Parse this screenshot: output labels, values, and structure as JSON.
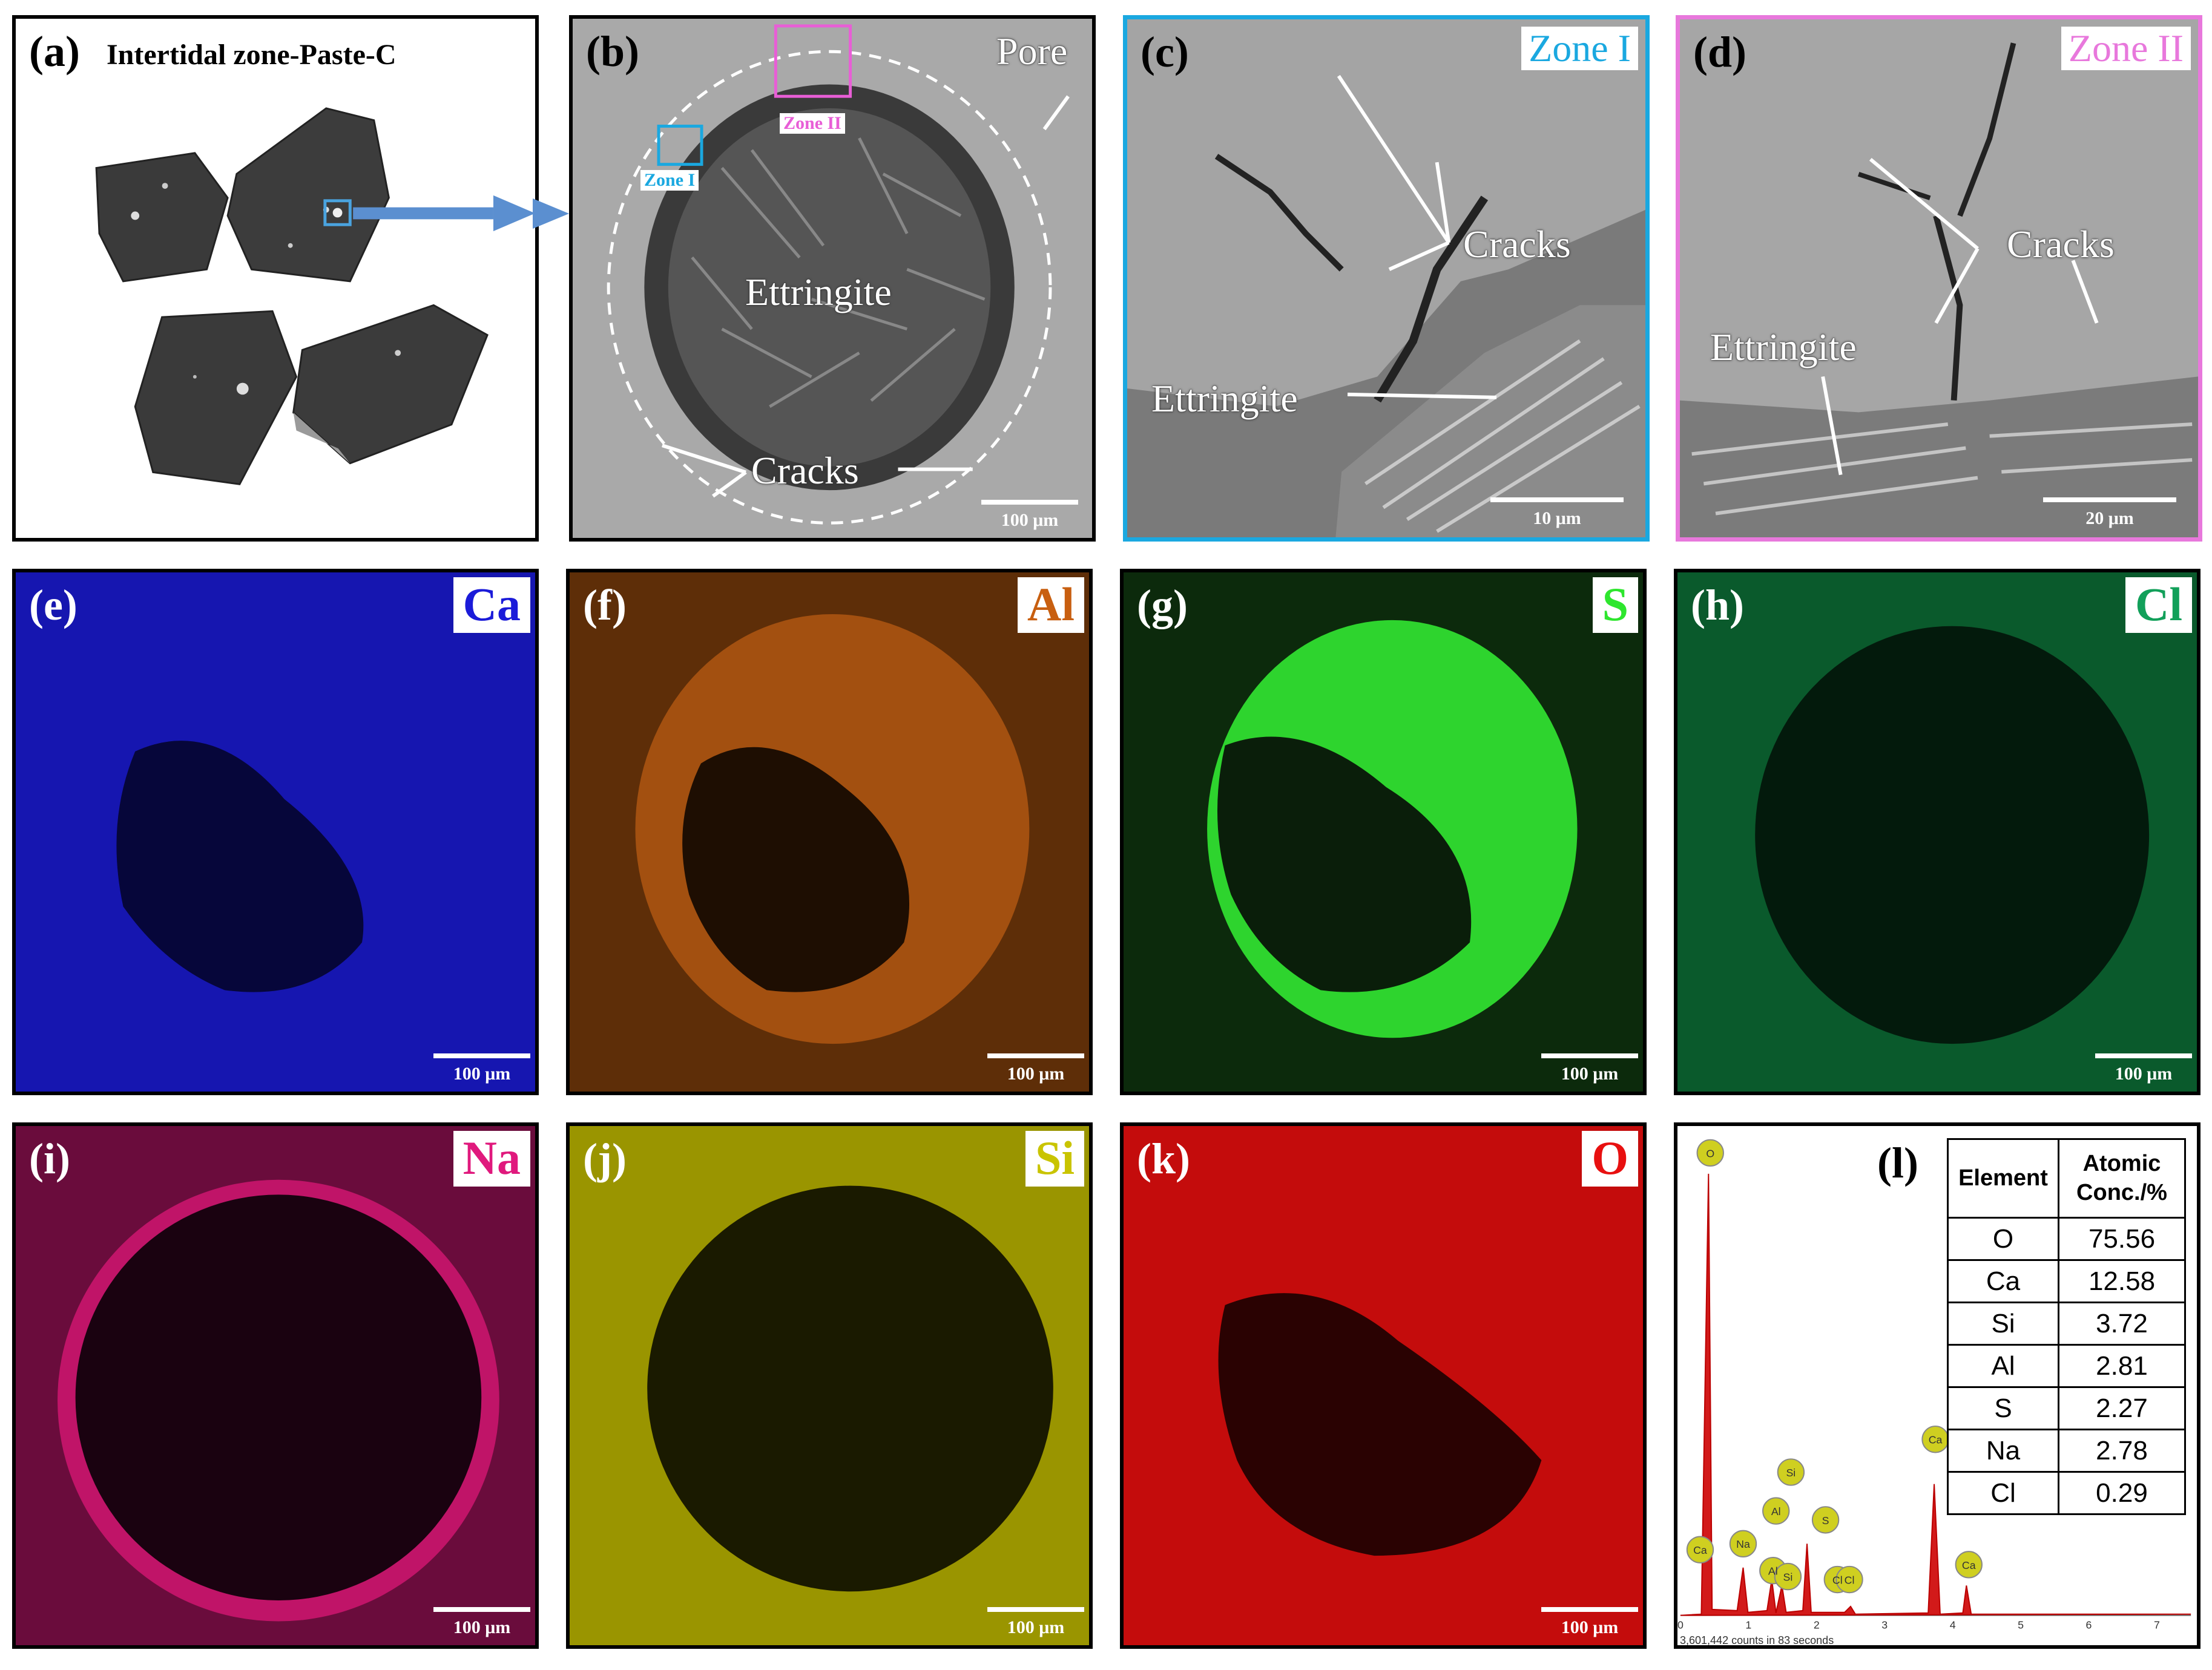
{
  "panels": {
    "a": {
      "label": "(a)",
      "title": "Intertidal zone-Paste-C"
    },
    "b": {
      "label": "(b)",
      "pore": "Pore",
      "ettringite": "Ettringite",
      "cracks": "Cracks",
      "zone1": "Zone I",
      "zone2": "Zone II",
      "scale": "100 μm"
    },
    "c": {
      "label": "(c)",
      "zone": "Zone I",
      "cracks": "Cracks",
      "ettringite": "Ettringite",
      "scale": "10 μm"
    },
    "d": {
      "label": "(d)",
      "zone": "Zone II",
      "cracks": "Cracks",
      "ettringite": "Ettringite",
      "scale": "20 μm"
    },
    "e": {
      "label": "(e)",
      "element": "Ca",
      "scale": "100 μm",
      "color": "#1b1bd9"
    },
    "f": {
      "label": "(f)",
      "element": "Al",
      "scale": "100 μm",
      "color": "#c85f10"
    },
    "g": {
      "label": "(g)",
      "element": "S",
      "scale": "100 μm",
      "color": "#2ee62e"
    },
    "h": {
      "label": "(h)",
      "element": "Cl",
      "scale": "100 μm",
      "color": "#12a05a"
    },
    "i": {
      "label": "(i)",
      "element": "Na",
      "scale": "100 μm",
      "color": "#e0197d"
    },
    "j": {
      "label": "(j)",
      "element": "Si",
      "scale": "100 μm",
      "color": "#c9c400"
    },
    "k": {
      "label": "(k)",
      "element": "O",
      "scale": "100 μm",
      "color": "#e81010"
    },
    "l": {
      "label": "(l)",
      "table": {
        "header_element": "Element",
        "header_conc": "Atomic Conc./%",
        "rows": [
          {
            "el": "O",
            "v": "75.56"
          },
          {
            "el": "Ca",
            "v": "12.58"
          },
          {
            "el": "Si",
            "v": "3.72"
          },
          {
            "el": "Al",
            "v": "2.81"
          },
          {
            "el": "S",
            "v": "2.27"
          },
          {
            "el": "Na",
            "v": "2.78"
          },
          {
            "el": "Cl",
            "v": "0.29"
          }
        ]
      },
      "footer": "3,601,442 counts in 83 seconds",
      "ticks": [
        "0",
        "1",
        "2",
        "3",
        "4",
        "5",
        "6",
        "7"
      ],
      "peaks": [
        "O",
        "Ca",
        "Na",
        "Al",
        "Al",
        "Si",
        "Si",
        "S",
        "Cl",
        "Cl",
        "Ca",
        "Ca"
      ]
    }
  }
}
